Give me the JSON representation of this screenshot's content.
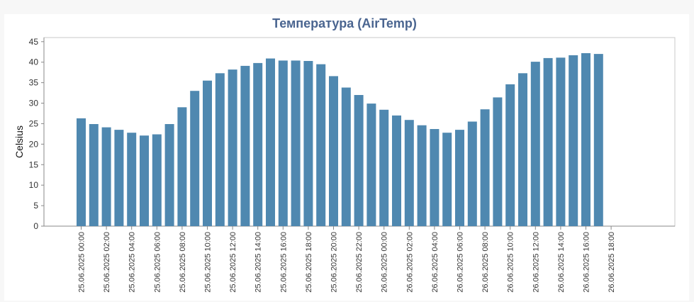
{
  "chart_data": {
    "type": "bar",
    "title": "Температура (AirTemp)",
    "xlabel": "",
    "ylabel": "Celsius",
    "ylim": [
      0,
      46
    ],
    "yticks": [
      0,
      5,
      10,
      15,
      20,
      25,
      30,
      35,
      40,
      45
    ],
    "grid": false,
    "legend": "none",
    "bar_color": "#4f88b0",
    "x_tick_labels": [
      "25.06.2025 00:00",
      "25.06.2025 02:00",
      "25.06.2025 04:00",
      "25.06.2025 06:00",
      "25.06.2025 08:00",
      "25.06.2025 10:00",
      "25.06.2025 12:00",
      "25.06.2025 14:00",
      "25.06.2025 16:00",
      "25.06.2025 18:00",
      "25.06.2025 20:00",
      "25.06.2025 22:00",
      "26.06.2025 00:00",
      "26.06.2025 02:00",
      "26.06.2025 04:00",
      "26.06.2025 06:00",
      "26.06.2025 08:00",
      "26.06.2025 10:00",
      "26.06.2025 12:00",
      "26.06.2025 14:00",
      "26.06.2025 16:00",
      "26.06.2025 18:00"
    ],
    "values": [
      26.3,
      24.9,
      24.1,
      23.5,
      22.8,
      22.1,
      22.4,
      24.9,
      29.0,
      33.0,
      35.5,
      37.3,
      38.2,
      39.1,
      39.8,
      40.9,
      40.4,
      40.4,
      40.3,
      39.5,
      36.6,
      33.8,
      32.0,
      29.9,
      28.4,
      27.0,
      25.9,
      24.6,
      23.7,
      22.8,
      23.5,
      25.5,
      28.5,
      31.4,
      34.6,
      37.3,
      40.1,
      41.0,
      41.1,
      41.7,
      42.2,
      42.0
    ]
  }
}
